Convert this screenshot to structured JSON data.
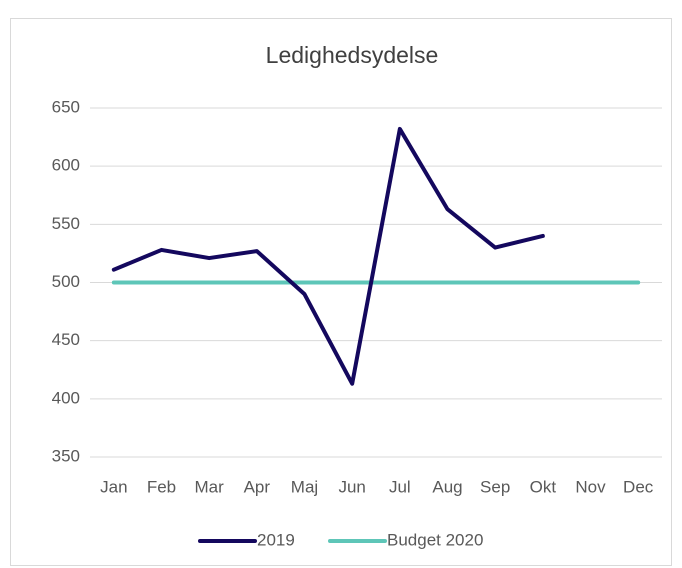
{
  "chart_data": {
    "type": "line",
    "title": "Ledighedsydelse",
    "categories": [
      "Jan",
      "Feb",
      "Mar",
      "Apr",
      "Maj",
      "Jun",
      "Jul",
      "Aug",
      "Sep",
      "Okt",
      "Nov",
      "Dec"
    ],
    "series": [
      {
        "name": "2019",
        "color": "#14085e",
        "values": [
          511,
          528,
          521,
          527,
          490,
          413,
          632,
          563,
          530,
          540,
          null,
          null
        ]
      },
      {
        "name": "Budget 2020",
        "color": "#5ec6b8",
        "values": [
          500,
          500,
          500,
          500,
          500,
          500,
          500,
          500,
          500,
          500,
          500,
          500
        ]
      }
    ],
    "ylim": [
      350,
      650
    ],
    "yticks": [
      350,
      400,
      450,
      500,
      550,
      600,
      650
    ],
    "grid": true,
    "legend": "bottom"
  }
}
